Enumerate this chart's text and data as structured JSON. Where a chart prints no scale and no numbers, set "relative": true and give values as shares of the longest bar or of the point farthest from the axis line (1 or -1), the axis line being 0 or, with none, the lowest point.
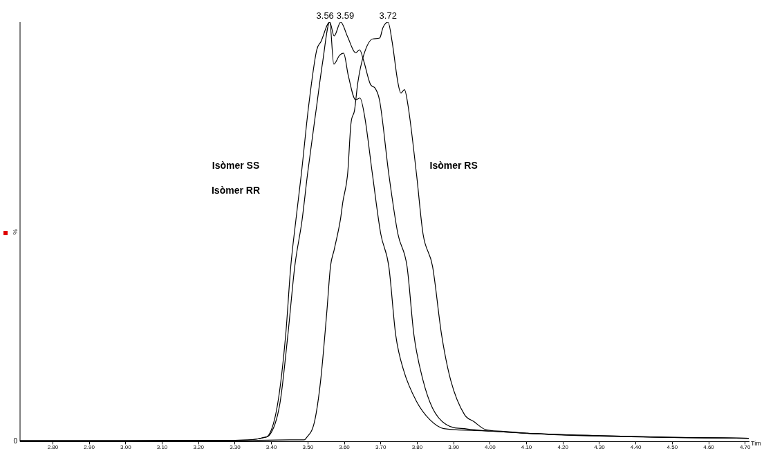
{
  "chart_data": {
    "type": "line",
    "relative": true,
    "xlabel": "Tim",
    "ylabel": "%",
    "xlim": [
      2.71,
      4.71
    ],
    "xticks": [
      {
        "value": 2.8,
        "label": "2.80"
      },
      {
        "value": 2.9,
        "label": "2.90"
      },
      {
        "value": 3.0,
        "label": "3.00"
      },
      {
        "value": 3.1,
        "label": "3.10"
      },
      {
        "value": 3.2,
        "label": "3.20"
      },
      {
        "value": 3.3,
        "label": "3.30"
      },
      {
        "value": 3.4,
        "label": "3.40"
      },
      {
        "value": 3.5,
        "label": "3.50"
      },
      {
        "value": 3.6,
        "label": "3.60"
      },
      {
        "value": 3.7,
        "label": "3.70"
      },
      {
        "value": 3.8,
        "label": "3.80"
      },
      {
        "value": 3.9,
        "label": "3.90"
      },
      {
        "value": 4.0,
        "label": "4.00"
      },
      {
        "value": 4.1,
        "label": "4.10"
      },
      {
        "value": 4.2,
        "label": "4.20"
      },
      {
        "value": 4.3,
        "label": "4.30"
      },
      {
        "value": 4.4,
        "label": "4.40"
      },
      {
        "value": 4.5,
        "label": "4.50"
      },
      {
        "value": 4.6,
        "label": "4.60"
      },
      {
        "value": 4.7,
        "label": "4.70"
      }
    ],
    "grid": false,
    "legend": false,
    "marker": "none",
    "line_style": "solid",
    "series": [
      {
        "color": "#000000",
        "x": [
          2.71,
          3.0,
          3.3,
          3.36,
          3.38,
          3.392,
          3.417,
          3.439,
          3.453,
          3.467,
          3.482,
          3.502,
          3.524,
          3.536,
          3.56,
          3.571,
          3.587,
          3.598,
          3.611,
          3.631,
          3.643,
          3.656,
          3.677,
          3.7,
          3.722,
          3.741,
          3.762,
          3.798,
          3.835,
          3.873,
          3.95,
          4.0,
          4.1,
          4.3,
          4.5,
          4.71
        ],
        "values": [
          0.002,
          0.002,
          0.003,
          0.006,
          0.01,
          0.015,
          0.09,
          0.254,
          0.418,
          0.528,
          0.638,
          0.8,
          0.933,
          0.954,
          1.0,
          0.9,
          0.921,
          0.926,
          0.872,
          0.815,
          0.819,
          0.774,
          0.638,
          0.495,
          0.418,
          0.254,
          0.172,
          0.096,
          0.052,
          0.031,
          0.027,
          0.025,
          0.02,
          0.014,
          0.01,
          0.008
        ]
      },
      {
        "color": "#000000",
        "x": [
          2.71,
          3.0,
          3.3,
          3.36,
          3.38,
          3.394,
          3.423,
          3.445,
          3.464,
          3.484,
          3.499,
          3.524,
          3.54,
          3.56,
          3.572,
          3.59,
          3.609,
          3.631,
          3.642,
          3.653,
          3.672,
          3.684,
          3.697,
          3.722,
          3.747,
          3.772,
          3.791,
          3.816,
          3.842,
          3.879,
          3.936,
          4.0,
          4.1,
          4.3,
          4.5,
          4.71
        ],
        "values": [
          0.002,
          0.002,
          0.003,
          0.006,
          0.01,
          0.015,
          0.09,
          0.254,
          0.418,
          0.528,
          0.638,
          0.8,
          0.902,
          1.0,
          0.967,
          1.0,
          0.965,
          0.927,
          0.934,
          0.908,
          0.851,
          0.843,
          0.812,
          0.638,
          0.495,
          0.418,
          0.254,
          0.146,
          0.08,
          0.041,
          0.03,
          0.025,
          0.02,
          0.014,
          0.01,
          0.008
        ]
      },
      {
        "color": "#000000",
        "x": [
          2.71,
          3.0,
          3.3,
          3.45,
          3.49,
          3.496,
          3.518,
          3.535,
          3.552,
          3.562,
          3.572,
          3.589,
          3.596,
          3.609,
          3.618,
          3.628,
          3.637,
          3.653,
          3.678,
          3.697,
          3.706,
          3.72,
          3.731,
          3.747,
          3.755,
          3.765,
          3.775,
          3.798,
          3.816,
          3.842,
          3.867,
          3.892,
          3.93,
          3.955,
          3.989,
          4.03,
          4.1,
          4.3,
          4.5,
          4.71
        ],
        "values": [
          0.001,
          0.001,
          0.002,
          0.004,
          0.004,
          0.009,
          0.047,
          0.146,
          0.31,
          0.418,
          0.457,
          0.528,
          0.572,
          0.638,
          0.757,
          0.79,
          0.856,
          0.921,
          0.96,
          0.962,
          0.987,
          1.0,
          0.954,
          0.856,
          0.831,
          0.839,
          0.8,
          0.638,
          0.495,
          0.418,
          0.254,
          0.146,
          0.064,
          0.048,
          0.028,
          0.025,
          0.02,
          0.013,
          0.01,
          0.008
        ]
      }
    ],
    "annotations": [
      {
        "text": "3.56",
        "x": 3.56,
        "y": 1.0
      },
      {
        "text": "3.59",
        "x": 3.59,
        "y": 1.0
      },
      {
        "text": "3.72",
        "x": 3.72,
        "y": 1.0
      },
      "Isòmer SS",
      "Isòmer RR",
      "Isòmer RS",
      {
        "text": "0",
        "x": 2.71,
        "y": 0
      }
    ]
  }
}
